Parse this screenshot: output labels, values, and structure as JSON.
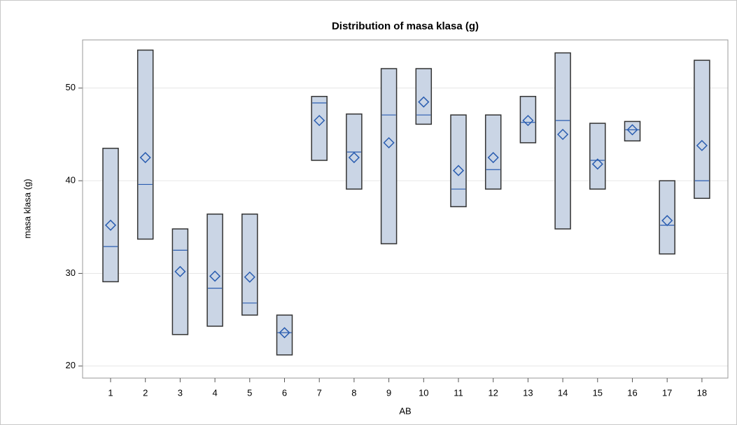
{
  "chart_data": {
    "type": "box",
    "title": "Distribution of masa klasa (g)",
    "x_label": "AB",
    "y_label": "masa klasa (g)",
    "categories": [
      "1",
      "2",
      "3",
      "4",
      "5",
      "6",
      "7",
      "8",
      "9",
      "10",
      "11",
      "12",
      "13",
      "14",
      "15",
      "16",
      "17",
      "18"
    ],
    "min": [
      29.1,
      33.7,
      23.4,
      24.3,
      25.5,
      21.2,
      42.2,
      39.1,
      33.2,
      46.1,
      37.2,
      39.1,
      44.1,
      34.8,
      39.1,
      44.3,
      32.1,
      38.1
    ],
    "max": [
      43.5,
      54.1,
      34.8,
      36.4,
      36.4,
      25.5,
      49.1,
      47.2,
      52.1,
      52.1,
      47.1,
      47.1,
      49.1,
      53.8,
      46.2,
      46.4,
      40.0,
      53.0
    ],
    "median": [
      32.9,
      39.6,
      32.5,
      28.4,
      26.8,
      23.6,
      48.4,
      43.1,
      47.1,
      47.1,
      39.1,
      41.2,
      46.3,
      46.5,
      42.2,
      45.5,
      35.2,
      40.0
    ],
    "mean": [
      35.2,
      42.5,
      30.2,
      29.7,
      29.6,
      23.6,
      46.5,
      42.5,
      44.1,
      48.5,
      41.1,
      42.5,
      46.5,
      45.0,
      41.8,
      45.5,
      35.7,
      43.8
    ],
    "box_color": "#cad5e5",
    "line_color": "#2a5db0",
    "ylim": [
      18.7,
      55.2
    ],
    "yticks": [
      20,
      30,
      40,
      50
    ],
    "grid": true
  }
}
